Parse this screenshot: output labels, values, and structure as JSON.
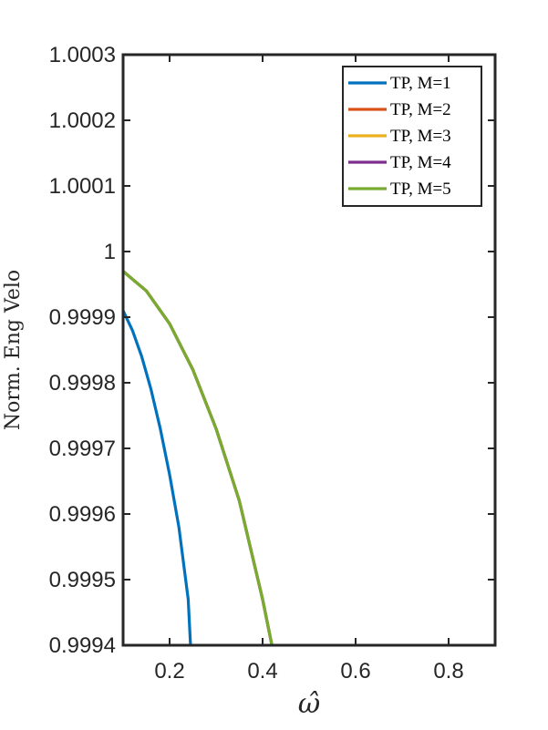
{
  "chart_data": {
    "type": "line",
    "title": "",
    "xlabel": "ω̂",
    "ylabel": "Norm. Eng Velo",
    "xlim": [
      0.1,
      0.9
    ],
    "ylim": [
      0.9994,
      1.0003
    ],
    "xticks": [
      0.2,
      0.4,
      0.6,
      0.8
    ],
    "xtick_labels": [
      "0.2",
      "0.4",
      "0.6",
      "0.8"
    ],
    "yticks": [
      0.9994,
      0.9995,
      0.9996,
      0.9997,
      0.9998,
      0.9999,
      1.0,
      1.0001,
      1.0002,
      1.0003
    ],
    "ytick_labels": [
      "0.9994",
      "0.9995",
      "0.9996",
      "0.9997",
      "0.9998",
      "0.9999",
      "1",
      "1.0001",
      "1.0002",
      "1.0003"
    ],
    "grid": false,
    "legend_position": "top-right",
    "series": [
      {
        "name": "TP, M=1",
        "color": "#0072BD",
        "x": [
          0.1,
          0.12,
          0.14,
          0.16,
          0.18,
          0.2,
          0.22,
          0.24,
          0.245
        ],
        "y": [
          0.99991,
          0.99988,
          0.99984,
          0.99979,
          0.99973,
          0.99966,
          0.99958,
          0.99947,
          0.9994
        ]
      },
      {
        "name": "TP, M=2",
        "color": "#D95319",
        "x": [
          0.1,
          0.15,
          0.2,
          0.25,
          0.3,
          0.35,
          0.4,
          0.42
        ],
        "y": [
          0.99997,
          0.99994,
          0.99989,
          0.99982,
          0.99973,
          0.99962,
          0.99947,
          0.9994
        ]
      },
      {
        "name": "TP, M=3",
        "color": "#EDB120",
        "x": [
          0.1,
          0.15,
          0.2,
          0.25,
          0.3,
          0.35,
          0.4,
          0.42
        ],
        "y": [
          0.99997,
          0.99994,
          0.99989,
          0.99982,
          0.99973,
          0.99962,
          0.99947,
          0.9994
        ]
      },
      {
        "name": "TP, M=4",
        "color": "#7E2F8E",
        "x": [
          0.1,
          0.15,
          0.2,
          0.25,
          0.3,
          0.35,
          0.4,
          0.42
        ],
        "y": [
          0.99997,
          0.99994,
          0.99989,
          0.99982,
          0.99973,
          0.99962,
          0.99947,
          0.9994
        ]
      },
      {
        "name": "TP, M=5",
        "color": "#77AC30",
        "x": [
          0.1,
          0.15,
          0.2,
          0.25,
          0.3,
          0.35,
          0.4,
          0.42
        ],
        "y": [
          0.99997,
          0.99994,
          0.99989,
          0.99982,
          0.99973,
          0.99962,
          0.99947,
          0.9994
        ]
      }
    ]
  }
}
